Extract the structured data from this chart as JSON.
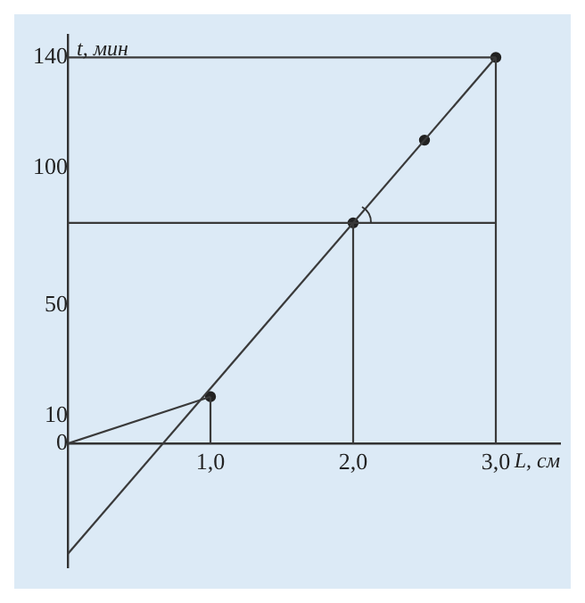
{
  "chart_data": {
    "type": "line",
    "xlabel": "L, см",
    "ylabel": "t, мин",
    "xlim": [
      0,
      3.45
    ],
    "ylim": [
      -45,
      148
    ],
    "xticks": [
      {
        "value": 1,
        "label": "1,0"
      },
      {
        "value": 2,
        "label": "2,0"
      },
      {
        "value": 3,
        "label": "3,0"
      }
    ],
    "yticks": [
      0,
      10,
      50,
      100,
      140
    ],
    "grid": false,
    "legend": false,
    "line_style": "solid",
    "marker": "none",
    "series": [
      {
        "color": "#3a3a3a",
        "x": [
          0,
          1
        ],
        "values": [
          0,
          17
        ]
      },
      {
        "color": "#3a3a3a",
        "x": [
          0,
          3
        ],
        "values": [
          -40,
          140
        ]
      },
      {
        "color": "#3a3a3a",
        "x": [
          0,
          3
        ],
        "values": [
          140,
          140
        ]
      },
      {
        "color": "#3a3a3a",
        "x": [
          0,
          3
        ],
        "values": [
          80,
          80
        ]
      },
      {
        "color": "#3a3a3a",
        "x": [
          1,
          1
        ],
        "values": [
          0,
          17
        ]
      },
      {
        "color": "#3a3a3a",
        "x": [
          2,
          2
        ],
        "values": [
          0,
          80
        ]
      },
      {
        "color": "#3a3a3a",
        "x": [
          3,
          3
        ],
        "values": [
          0,
          140
        ]
      },
      {
        "type": "scatter",
        "color": "#222222",
        "marker": "circle",
        "x": [
          1,
          2,
          2.5,
          3
        ],
        "values": [
          17,
          80,
          110,
          140
        ]
      }
    ]
  }
}
